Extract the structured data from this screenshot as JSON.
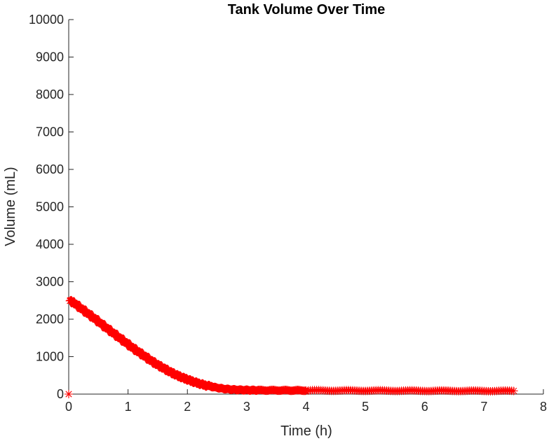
{
  "chart_data": {
    "type": "scatter",
    "title": "Tank Volume Over Time",
    "xlabel": "Time (h)",
    "ylabel": "Volume (mL)",
    "xlim": [
      0,
      8
    ],
    "ylim": [
      0,
      10000
    ],
    "xticks": [
      0,
      1,
      2,
      3,
      4,
      5,
      6,
      7,
      8
    ],
    "yticks": [
      0,
      1000,
      2000,
      3000,
      4000,
      5000,
      6000,
      7000,
      8000,
      9000,
      10000
    ],
    "grid": false,
    "marker": "asterisk",
    "color": "#ff0000",
    "series": [
      {
        "x": [
          0,
          0.02,
          0.1,
          0.2,
          0.3,
          0.4,
          0.5,
          0.6,
          0.7,
          0.8,
          0.9,
          1.0,
          1.1,
          1.2,
          1.3,
          1.4,
          1.5,
          1.6,
          1.7,
          1.8,
          1.9,
          2.0,
          2.1,
          2.2,
          2.3,
          2.4,
          2.5,
          2.6,
          2.7,
          2.8,
          2.9,
          3.0,
          3.1,
          3.2,
          3.4,
          3.6,
          3.8,
          4.0,
          4.5,
          5.0,
          5.5,
          6.0,
          6.5,
          7.0,
          7.5
        ],
        "y": [
          0,
          2500,
          2420,
          2300,
          2180,
          2060,
          1940,
          1810,
          1690,
          1570,
          1450,
          1330,
          1210,
          1100,
          990,
          880,
          780,
          690,
          600,
          520,
          450,
          390,
          330,
          280,
          235,
          200,
          170,
          145,
          128,
          118,
          112,
          108,
          105,
          103,
          101,
          100,
          99,
          98,
          96,
          94,
          92,
          90,
          88,
          86,
          85
        ]
      }
    ]
  }
}
